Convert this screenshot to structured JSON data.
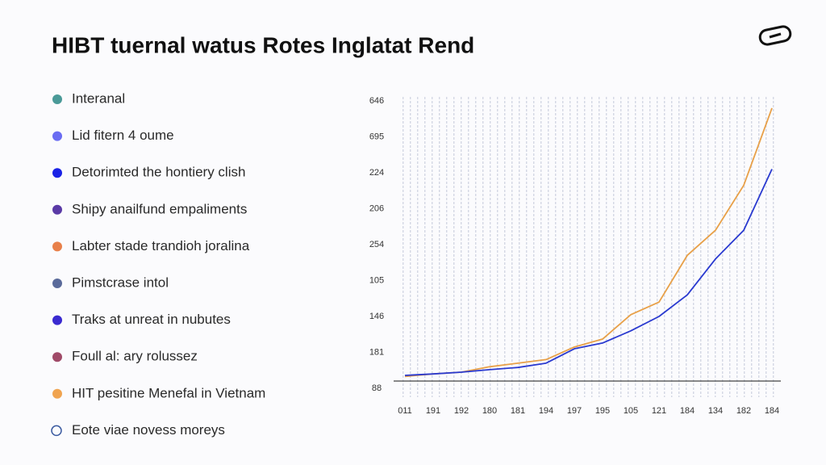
{
  "title": "HIBT tuernal watus Rotes Inglatat Rend",
  "list": [
    {
      "label": "Interanal",
      "color": "#4a9a98"
    },
    {
      "label": "Lid fitern 4 oume",
      "color": "#6a6cf2"
    },
    {
      "label": "Detorimted the hontiery clish",
      "color": "#1a22e6"
    },
    {
      "label": "Shipy anailfund empaliments",
      "color": "#5a3aa6"
    },
    {
      "label": "Labter stade trandioh joralina",
      "color": "#e8804a"
    },
    {
      "label": "Pimstcrase intol",
      "color": "#5a6a9a"
    },
    {
      "label": "Traks at unreat in nubutes",
      "color": "#3a2ad0"
    },
    {
      "label": "Foull al: ary rolussez",
      "color": "#a04a68"
    },
    {
      "label": "HIT pesitine Menefal in Vietnam",
      "color": "#f0a450"
    },
    {
      "label": "Eote viae novess moreys",
      "color": "#3a5aa0",
      "hollow": true
    }
  ],
  "chart_data": {
    "type": "line",
    "categories": [
      "011",
      "191",
      "192",
      "180",
      "181",
      "194",
      "197",
      "195",
      "105",
      "121",
      "184",
      "134",
      "182",
      "184"
    ],
    "series": [
      {
        "color": "#e8a048",
        "values": [
          0.33,
          0.4,
          0.45,
          0.6,
          0.7,
          0.8,
          1.15,
          1.37,
          2.05,
          2.4,
          3.7,
          4.4,
          5.65,
          7.8
        ]
      },
      {
        "color": "#2a3ad0",
        "values": [
          0.36,
          0.4,
          0.45,
          0.52,
          0.58,
          0.7,
          1.1,
          1.26,
          1.6,
          2.0,
          2.6,
          3.6,
          4.4,
          6.1
        ]
      }
    ],
    "ylim": [
      0,
      8
    ],
    "yticks": [
      {
        "value": 0,
        "label": "88"
      },
      {
        "value": 1,
        "label": "181"
      },
      {
        "value": 2,
        "label": "146"
      },
      {
        "value": 3,
        "label": "105"
      },
      {
        "value": 4,
        "label": "254"
      },
      {
        "value": 5,
        "label": "206"
      },
      {
        "value": 6,
        "label": "224"
      },
      {
        "value": 7,
        "label": "695"
      },
      {
        "value": 8,
        "label": "646"
      }
    ]
  }
}
